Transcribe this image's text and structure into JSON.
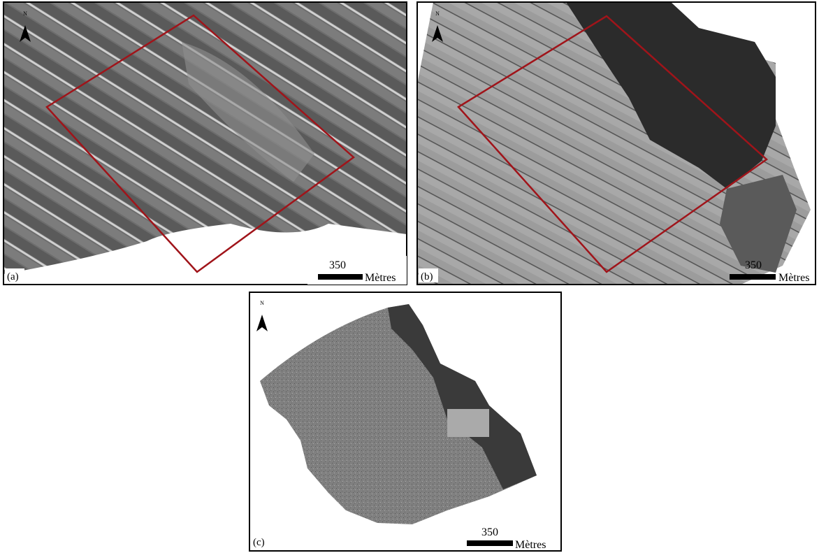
{
  "panels": [
    {
      "label": "(a)",
      "north": "N",
      "scale": {
        "value": 350,
        "unit": "Mètres"
      }
    },
    {
      "label": "(b)",
      "north": "N",
      "scale": {
        "value": 350,
        "unit": "Mètres"
      }
    },
    {
      "label": "(c)",
      "north": "N",
      "scale": {
        "value": 350,
        "unit": "Mètres"
      }
    }
  ]
}
